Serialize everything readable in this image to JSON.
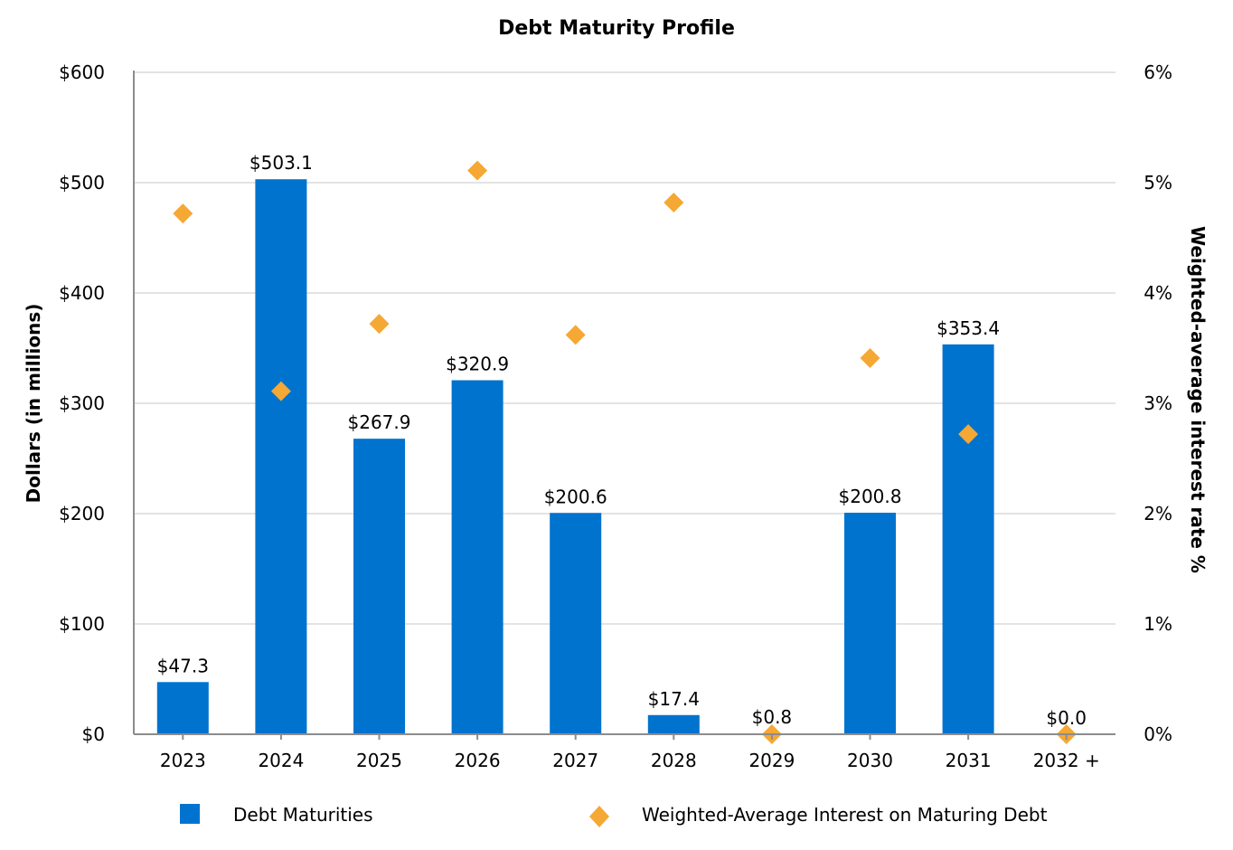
{
  "chart_data": {
    "type": "bar",
    "title": "Debt Maturity Profile",
    "categories": [
      "2023",
      "2024",
      "2025",
      "2026",
      "2027",
      "2028",
      "2029",
      "2030",
      "2031",
      "2032 +"
    ],
    "y_axis": {
      "label": "Dollars (in millions)",
      "range": [
        0,
        600
      ],
      "ticks": [
        "$0",
        "$100",
        "$200",
        "$300",
        "$400",
        "$500",
        "$600"
      ]
    },
    "y2_axis": {
      "label": "Weighted-average interest rate %",
      "range": [
        0,
        6
      ],
      "ticks": [
        "0%",
        "1%",
        "2%",
        "3%",
        "4%",
        "5%",
        "6%"
      ]
    },
    "series": [
      {
        "name": "Debt Maturities",
        "type": "bar",
        "axis": "left",
        "color": "#0073CF",
        "values": [
          47.3,
          503.1,
          267.9,
          320.9,
          200.6,
          17.4,
          0.8,
          200.8,
          353.4,
          0.0
        ],
        "labels": [
          "$47.3",
          "$503.1",
          "$267.9",
          "$320.9",
          "$200.6",
          "$17.4",
          "$0.8",
          "$200.8",
          "$353.4",
          "$0.0"
        ]
      },
      {
        "name": "Weighted-Average Interest on Maturing Debt",
        "type": "scatter",
        "marker": "diamond",
        "axis": "right",
        "color": "#F5A833",
        "values": [
          4.72,
          3.11,
          3.72,
          5.11,
          3.62,
          4.82,
          0.0,
          3.41,
          2.72,
          0.0
        ]
      }
    ],
    "grid": true,
    "legend_position": "bottom"
  }
}
